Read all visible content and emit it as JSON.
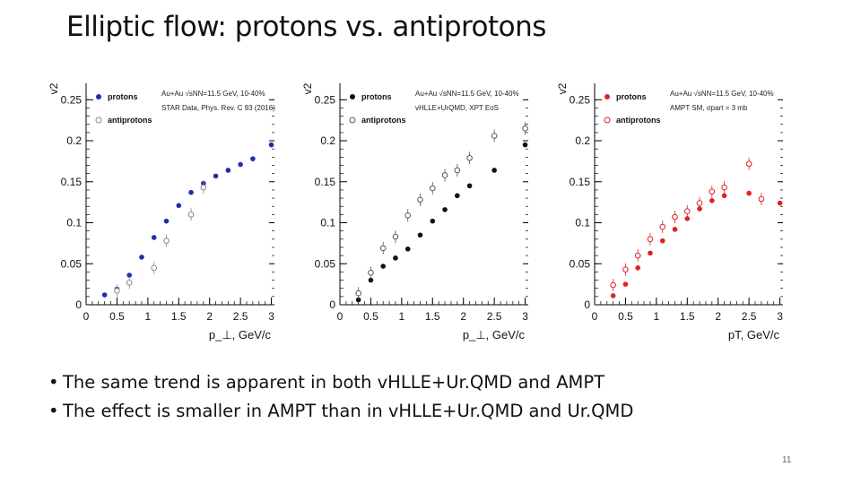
{
  "slide": {
    "title": "Elliptic flow: protons vs. antiprotons",
    "bullets": [
      "The same trend is apparent in both vHLLE+Ur.QMD and AMPT",
      "The effect is smaller in AMPT than in vHLLE+Ur.QMD and Ur.QMD"
    ],
    "bullet_symbol": "•",
    "page_number": "11"
  },
  "chart_data": [
    {
      "type": "scatter",
      "ylabel": "v2",
      "xlabel": "p_⊥, GeV/c",
      "xlim": [
        0,
        3.05
      ],
      "ylim": [
        0,
        0.27
      ],
      "xticks": [
        "0",
        "0.5",
        "1",
        "1.5",
        "2",
        "2.5",
        "3"
      ],
      "yticks": [
        "0",
        "0.05",
        "0.1",
        "0.15",
        "0.2",
        "0.25"
      ],
      "annotation": [
        "Au+Au √sNN=11.5 GeV, 10-40%",
        "STAR Data, Phys. Rev. C 93 (2016)"
      ],
      "series": [
        {
          "name": "protons",
          "color": "#1f2fa8",
          "marker": "filled",
          "x": [
            0.3,
            0.5,
            0.7,
            0.9,
            1.1,
            1.3,
            1.5,
            1.7,
            1.9,
            2.1,
            2.3,
            2.5,
            2.7,
            3.0
          ],
          "y": [
            0.012,
            0.019,
            0.036,
            0.058,
            0.082,
            0.102,
            0.121,
            0.137,
            0.148,
            0.157,
            0.164,
            0.171,
            0.178,
            0.195
          ]
        },
        {
          "name": "antiprotons",
          "color": "#888888",
          "marker": "open",
          "x": [
            0.5,
            0.7,
            1.1,
            1.3,
            1.7,
            1.9
          ],
          "y": [
            0.017,
            0.027,
            0.045,
            0.078,
            0.11,
            0.143
          ]
        }
      ]
    },
    {
      "type": "scatter",
      "ylabel": "v2",
      "xlabel": "p_⊥, GeV/c",
      "xlim": [
        0,
        3.05
      ],
      "ylim": [
        0,
        0.27
      ],
      "xticks": [
        "0",
        "0.5",
        "1",
        "1.5",
        "2",
        "2.5",
        "3"
      ],
      "yticks": [
        "0",
        "0.05",
        "0.1",
        "0.15",
        "0.2",
        "0.25"
      ],
      "annotation": [
        "Au+Au √sNN=11.5 GeV, 10-40%",
        "vHLLE+UrQMD, XPT EoS"
      ],
      "series": [
        {
          "name": "protons",
          "color": "#111111",
          "marker": "filled",
          "x": [
            0.3,
            0.5,
            0.7,
            0.9,
            1.1,
            1.3,
            1.5,
            1.7,
            1.9,
            2.1,
            2.5,
            3.0
          ],
          "y": [
            0.006,
            0.03,
            0.047,
            0.057,
            0.068,
            0.085,
            0.102,
            0.116,
            0.133,
            0.145,
            0.164,
            0.195
          ]
        },
        {
          "name": "antiprotons",
          "color": "#555555",
          "marker": "open",
          "x": [
            0.3,
            0.5,
            0.7,
            0.9,
            1.1,
            1.3,
            1.5,
            1.7,
            1.9,
            2.1,
            2.5,
            3.0
          ],
          "y": [
            0.014,
            0.039,
            0.069,
            0.083,
            0.109,
            0.128,
            0.142,
            0.158,
            0.164,
            0.179,
            0.206,
            0.215
          ]
        }
      ]
    },
    {
      "type": "scatter",
      "ylabel": "v2",
      "xlabel": "pT, GeV/c",
      "xlim": [
        0,
        3.05
      ],
      "ylim": [
        0,
        0.27
      ],
      "xticks": [
        "0",
        "0.5",
        "1",
        "1.5",
        "2",
        "2.5",
        "3"
      ],
      "yticks": [
        "0",
        "0.05",
        "0.1",
        "0.15",
        "0.2",
        "0.25"
      ],
      "annotation": [
        "Au+Au √sNN=11.5 GeV, 10-40%",
        "AMPT SM, σpart = 3 mb"
      ],
      "series": [
        {
          "name": "protons",
          "color": "#dd2222",
          "marker": "filled",
          "x": [
            0.3,
            0.5,
            0.7,
            0.9,
            1.1,
            1.3,
            1.5,
            1.7,
            1.9,
            2.1,
            2.5,
            3.0
          ],
          "y": [
            0.011,
            0.025,
            0.045,
            0.063,
            0.078,
            0.092,
            0.105,
            0.117,
            0.127,
            0.133,
            0.136,
            0.124
          ]
        },
        {
          "name": "antiprotons",
          "color": "#dd2222",
          "marker": "open",
          "x": [
            0.3,
            0.5,
            0.7,
            0.9,
            1.1,
            1.3,
            1.5,
            1.7,
            1.9,
            2.1,
            2.5,
            2.7
          ],
          "y": [
            0.024,
            0.043,
            0.06,
            0.08,
            0.095,
            0.107,
            0.114,
            0.124,
            0.138,
            0.143,
            0.172,
            0.129
          ]
        }
      ]
    }
  ]
}
